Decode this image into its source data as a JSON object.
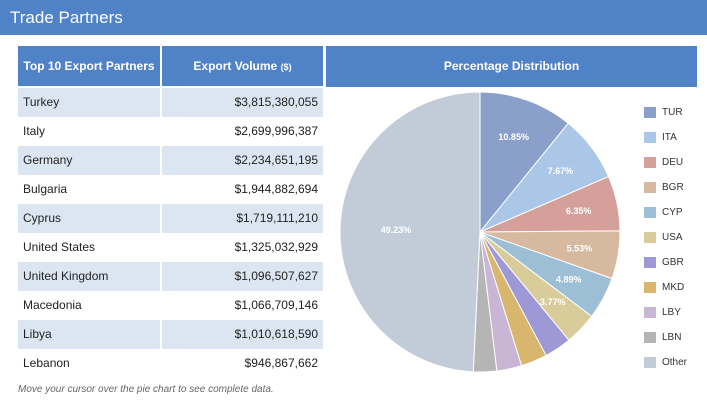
{
  "header": {
    "title": "Trade Partners"
  },
  "table": {
    "col1_header": "Top 10 Export Partners",
    "col2_header": "Export Volume",
    "col2_unit": "($)",
    "rows": [
      {
        "country": "Turkey",
        "volume": "$3,815,380,055"
      },
      {
        "country": "Italy",
        "volume": "$2,699,996,387"
      },
      {
        "country": "Germany",
        "volume": "$2,234,651,195"
      },
      {
        "country": "Bulgaria",
        "volume": "$1,944,882,694"
      },
      {
        "country": "Cyprus",
        "volume": "$1,719,111,210"
      },
      {
        "country": "United States",
        "volume": "$1,325,032,929"
      },
      {
        "country": "United Kingdom",
        "volume": "$1,096,507,627"
      },
      {
        "country": "Macedonia",
        "volume": "$1,066,709,146"
      },
      {
        "country": "Libya",
        "volume": "$1,010,618,590"
      },
      {
        "country": "Lebanon",
        "volume": "$946,867,662"
      }
    ]
  },
  "distribution": {
    "header": "Percentage Distribution"
  },
  "footnote": "Move your cursor over the pie chart to see complete data.",
  "chart_data": {
    "type": "pie",
    "title": "Percentage Distribution",
    "legend_position": "right",
    "slices": [
      {
        "label": "TUR",
        "value": 10.85,
        "display": "10.85%",
        "color": "#8aa0cb"
      },
      {
        "label": "ITA",
        "value": 7.67,
        "display": "7.67%",
        "color": "#abc7e8"
      },
      {
        "label": "DEU",
        "value": 6.35,
        "display": "6.35%",
        "color": "#d5a09a"
      },
      {
        "label": "BGR",
        "value": 5.53,
        "display": "5.53%",
        "color": "#d6b99e"
      },
      {
        "label": "CYP",
        "value": 4.89,
        "display": "4.89%",
        "color": "#9dbfd6"
      },
      {
        "label": "USA",
        "value": 3.77,
        "display": "3.77%",
        "color": "#d9cc9b"
      },
      {
        "label": "GBR",
        "value": 3.12,
        "display": "",
        "color": "#9e98d6"
      },
      {
        "label": "MKD",
        "value": 3.03,
        "display": "",
        "color": "#d8b66e"
      },
      {
        "label": "LBY",
        "value": 2.87,
        "display": "",
        "color": "#c8b6d4"
      },
      {
        "label": "LBN",
        "value": 2.69,
        "display": "",
        "color": "#b5b5b5"
      },
      {
        "label": "Other",
        "value": 49.23,
        "display": "49.23%",
        "color": "#c2ccd8"
      }
    ]
  }
}
